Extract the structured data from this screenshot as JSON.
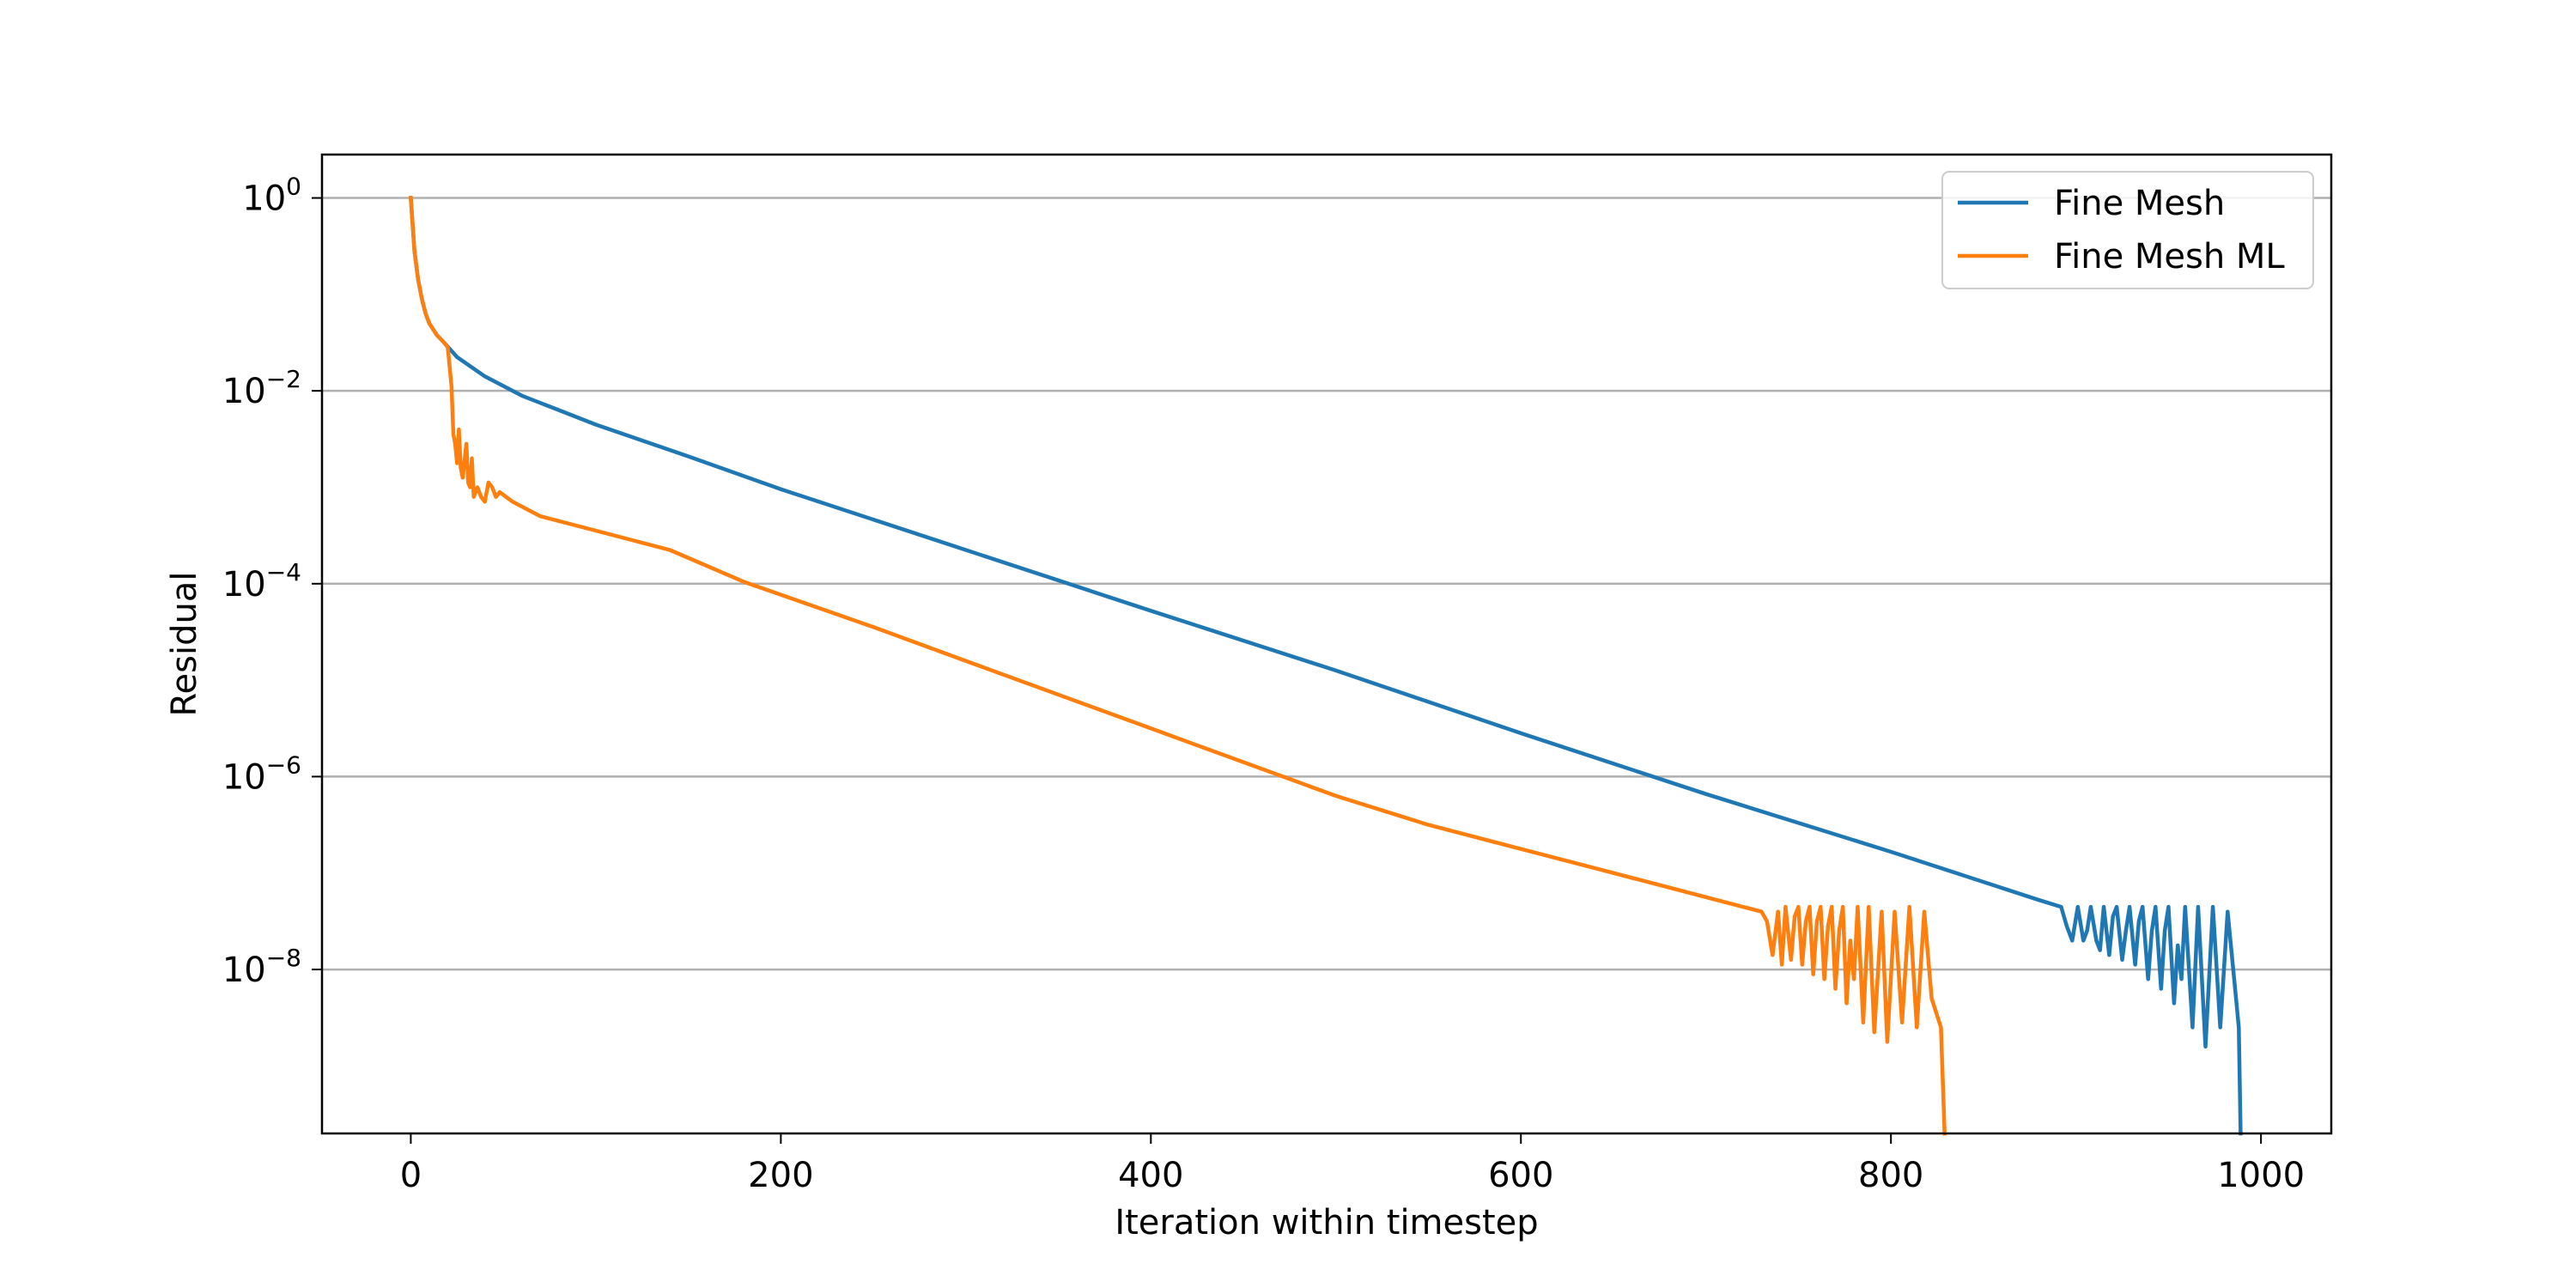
{
  "chart_data": {
    "type": "line",
    "title": "",
    "xlabel": "Iteration within timestep",
    "ylabel": "Residual",
    "xlim": [
      -48,
      1038
    ],
    "ylim_log10": [
      -9.7,
      0.45
    ],
    "y_scale": "log",
    "x_ticks": [
      0,
      200,
      400,
      600,
      800,
      1000
    ],
    "y_ticks": [
      {
        "exp": 0,
        "base": "10",
        "exponent": "0"
      },
      {
        "exp": -2,
        "base": "10",
        "exponent": "−2"
      },
      {
        "exp": -4,
        "base": "10",
        "exponent": "−4"
      },
      {
        "exp": -6,
        "base": "10",
        "exponent": "−6"
      },
      {
        "exp": -8,
        "base": "10",
        "exponent": "−8"
      }
    ],
    "grid": {
      "y": true,
      "x": false
    },
    "legend_position": "top-right",
    "series": [
      {
        "name": "Fine Mesh",
        "color": "#1f77b4",
        "points_log10": [
          [
            0,
            0.0
          ],
          [
            2,
            -0.55
          ],
          [
            4,
            -0.85
          ],
          [
            6,
            -1.05
          ],
          [
            8,
            -1.2
          ],
          [
            10,
            -1.3
          ],
          [
            14,
            -1.42
          ],
          [
            18,
            -1.5
          ],
          [
            25,
            -1.65
          ],
          [
            40,
            -1.85
          ],
          [
            60,
            -2.05
          ],
          [
            100,
            -2.35
          ],
          [
            150,
            -2.68
          ],
          [
            200,
            -3.02
          ],
          [
            300,
            -3.65
          ],
          [
            400,
            -4.28
          ],
          [
            500,
            -4.9
          ],
          [
            600,
            -5.55
          ],
          [
            700,
            -6.18
          ],
          [
            800,
            -6.78
          ],
          [
            880,
            -7.28
          ],
          [
            892,
            -7.35
          ],
          [
            895,
            -7.55
          ],
          [
            898,
            -7.7
          ],
          [
            901,
            -7.35
          ],
          [
            904,
            -7.7
          ],
          [
            906,
            -7.6
          ],
          [
            908,
            -7.35
          ],
          [
            911,
            -7.7
          ],
          [
            913,
            -7.8
          ],
          [
            915,
            -7.35
          ],
          [
            918,
            -7.85
          ],
          [
            920,
            -7.45
          ],
          [
            922,
            -7.35
          ],
          [
            925,
            -7.9
          ],
          [
            927,
            -7.6
          ],
          [
            929,
            -7.35
          ],
          [
            932,
            -7.95
          ],
          [
            934,
            -7.5
          ],
          [
            936,
            -7.35
          ],
          [
            939,
            -8.1
          ],
          [
            941,
            -7.6
          ],
          [
            943,
            -7.35
          ],
          [
            946,
            -8.2
          ],
          [
            948,
            -7.6
          ],
          [
            950,
            -7.35
          ],
          [
            953,
            -8.35
          ],
          [
            955,
            -7.75
          ],
          [
            957,
            -8.1
          ],
          [
            959,
            -7.35
          ],
          [
            963,
            -8.6
          ],
          [
            966,
            -7.35
          ],
          [
            970,
            -8.8
          ],
          [
            974,
            -7.35
          ],
          [
            978,
            -8.6
          ],
          [
            982,
            -7.4
          ],
          [
            986,
            -8.2
          ],
          [
            988,
            -8.6
          ],
          [
            989,
            -9.7
          ]
        ]
      },
      {
        "name": "Fine Mesh ML",
        "color": "#ff7f0e",
        "points_log10": [
          [
            0,
            0.0
          ],
          [
            2,
            -0.55
          ],
          [
            4,
            -0.85
          ],
          [
            6,
            -1.05
          ],
          [
            8,
            -1.2
          ],
          [
            10,
            -1.3
          ],
          [
            14,
            -1.42
          ],
          [
            18,
            -1.5
          ],
          [
            20,
            -1.55
          ],
          [
            22,
            -1.95
          ],
          [
            23,
            -2.45
          ],
          [
            24,
            -2.55
          ],
          [
            25,
            -2.75
          ],
          [
            26,
            -2.4
          ],
          [
            27,
            -2.8
          ],
          [
            28,
            -2.9
          ],
          [
            30,
            -2.55
          ],
          [
            31,
            -2.95
          ],
          [
            32,
            -3.0
          ],
          [
            33,
            -2.7
          ],
          [
            34,
            -3.1
          ],
          [
            36,
            -3.0
          ],
          [
            38,
            -3.1
          ],
          [
            40,
            -3.15
          ],
          [
            42,
            -2.95
          ],
          [
            44,
            -3.0
          ],
          [
            46,
            -3.1
          ],
          [
            48,
            -3.05
          ],
          [
            55,
            -3.15
          ],
          [
            70,
            -3.3
          ],
          [
            100,
            -3.45
          ],
          [
            140,
            -3.65
          ],
          [
            180,
            -3.98
          ],
          [
            250,
            -4.45
          ],
          [
            300,
            -4.8
          ],
          [
            400,
            -5.5
          ],
          [
            500,
            -6.2
          ],
          [
            550,
            -6.5
          ],
          [
            600,
            -6.75
          ],
          [
            650,
            -7.0
          ],
          [
            700,
            -7.25
          ],
          [
            730,
            -7.4
          ],
          [
            733,
            -7.5
          ],
          [
            736,
            -7.85
          ],
          [
            739,
            -7.4
          ],
          [
            741,
            -7.95
          ],
          [
            743,
            -7.35
          ],
          [
            746,
            -7.9
          ],
          [
            748,
            -7.45
          ],
          [
            750,
            -7.35
          ],
          [
            752,
            -7.95
          ],
          [
            754,
            -7.5
          ],
          [
            756,
            -7.35
          ],
          [
            758,
            -8.05
          ],
          [
            760,
            -7.5
          ],
          [
            762,
            -7.35
          ],
          [
            764,
            -8.1
          ],
          [
            766,
            -7.55
          ],
          [
            768,
            -7.35
          ],
          [
            770,
            -8.2
          ],
          [
            772,
            -7.6
          ],
          [
            774,
            -7.35
          ],
          [
            776,
            -8.35
          ],
          [
            778,
            -7.7
          ],
          [
            780,
            -8.1
          ],
          [
            782,
            -7.35
          ],
          [
            785,
            -8.55
          ],
          [
            788,
            -7.35
          ],
          [
            791,
            -8.65
          ],
          [
            795,
            -7.4
          ],
          [
            798,
            -8.75
          ],
          [
            802,
            -7.4
          ],
          [
            806,
            -8.55
          ],
          [
            810,
            -7.35
          ],
          [
            814,
            -8.6
          ],
          [
            818,
            -7.4
          ],
          [
            822,
            -8.3
          ],
          [
            827,
            -8.6
          ],
          [
            829,
            -9.7
          ]
        ]
      }
    ]
  }
}
